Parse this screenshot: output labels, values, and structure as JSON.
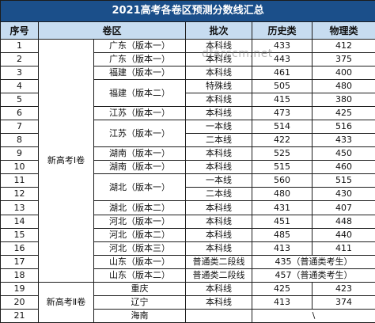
{
  "title": "2021高考各卷区预测分数线汇总",
  "headers": [
    "序号",
    "卷区",
    "批次",
    "历史类",
    "物理类"
  ],
  "groups": [
    "新高考Ⅰ卷",
    "新高考Ⅱ卷"
  ],
  "watermark": "dfarccm.net",
  "rows": [
    {
      "no": "1",
      "region": "广东（版本一）",
      "batch": "本科线",
      "history": "433",
      "physics": "412"
    },
    {
      "no": "2",
      "region": "广东（版本一）",
      "batch": "本科线",
      "history": "443",
      "physics": "375"
    },
    {
      "no": "3",
      "region": "福建（版本一）",
      "batch": "本科线",
      "history": "461",
      "physics": "400"
    },
    {
      "no": "4",
      "region": "福建（版本二）",
      "batch": "特殊线",
      "history": "505",
      "physics": "480"
    },
    {
      "no": "5",
      "region": "",
      "batch": "本科线",
      "history": "415",
      "physics": "380"
    },
    {
      "no": "6",
      "region": "江苏（版本一）",
      "batch": "本科线",
      "history": "473",
      "physics": "425"
    },
    {
      "no": "7",
      "region": "江苏（版本一）",
      "batch": "一本线",
      "history": "514",
      "physics": "516"
    },
    {
      "no": "8",
      "region": "",
      "batch": "二本线",
      "history": "422",
      "physics": "433"
    },
    {
      "no": "9",
      "region": "湖南（版本一）",
      "batch": "本科线",
      "history": "525",
      "physics": "450"
    },
    {
      "no": "10",
      "region": "湖南（版本一）",
      "batch": "本科线",
      "history": "515",
      "physics": "460"
    },
    {
      "no": "11",
      "region": "湖北（版本一）",
      "batch": "一本线",
      "history": "560",
      "physics": "515"
    },
    {
      "no": "12",
      "region": "",
      "batch": "二本线",
      "history": "480",
      "physics": "430"
    },
    {
      "no": "13",
      "region": "湖北（版本二）",
      "batch": "本科线",
      "history": "431",
      "physics": "407"
    },
    {
      "no": "14",
      "region": "河北（版本一）",
      "batch": "本科线",
      "history": "451",
      "physics": "448"
    },
    {
      "no": "15",
      "region": "河北（版本二）",
      "batch": "本科线",
      "history": "485",
      "physics": "440"
    },
    {
      "no": "16",
      "region": "河北（版本三）",
      "batch": "本科线",
      "history": "413",
      "physics": "411"
    },
    {
      "no": "17",
      "region": "山东（版本一）",
      "batch": "普通类二段线",
      "history": "435（普通类考生）",
      "physics": ""
    },
    {
      "no": "18",
      "region": "山东（版本二）",
      "batch": "普通类二段线",
      "history": "457（普通类考生）",
      "physics": ""
    },
    {
      "no": "19",
      "region": "重庆",
      "batch": "本科线",
      "history": "425",
      "physics": "423"
    },
    {
      "no": "20",
      "region": "辽宁",
      "batch": "本科线",
      "history": "413",
      "physics": "374"
    },
    {
      "no": "21",
      "region": "海南",
      "batch": "",
      "history": "\\",
      "physics": ""
    }
  ]
}
